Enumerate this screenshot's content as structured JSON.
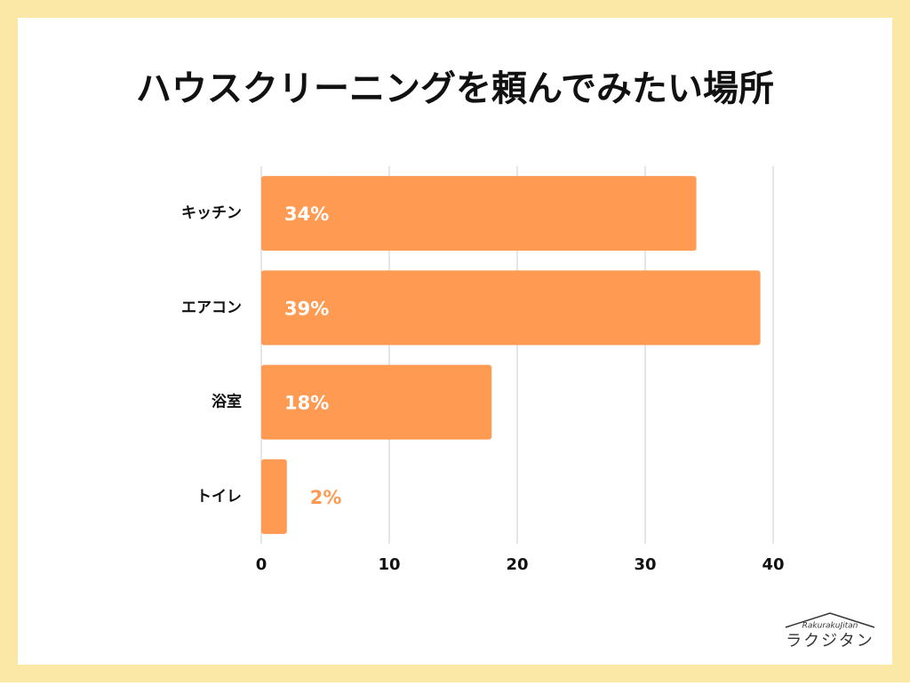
{
  "chart_data": {
    "type": "barh",
    "title": "ハウスクリーニングを頼んでみたい場所",
    "categories": [
      "キッチン",
      "エアコン",
      "浴室",
      "トイレ"
    ],
    "values": [
      34,
      39,
      18,
      2
    ],
    "value_labels": [
      "34%",
      "39%",
      "18%",
      "2%"
    ],
    "color": "#ff9a52",
    "xlim": [
      0,
      40
    ],
    "xticks": [
      0,
      10,
      20,
      30,
      40
    ],
    "grid": true
  },
  "logo": {
    "script": "RakurakuJitan",
    "name": "ラクジタン"
  }
}
